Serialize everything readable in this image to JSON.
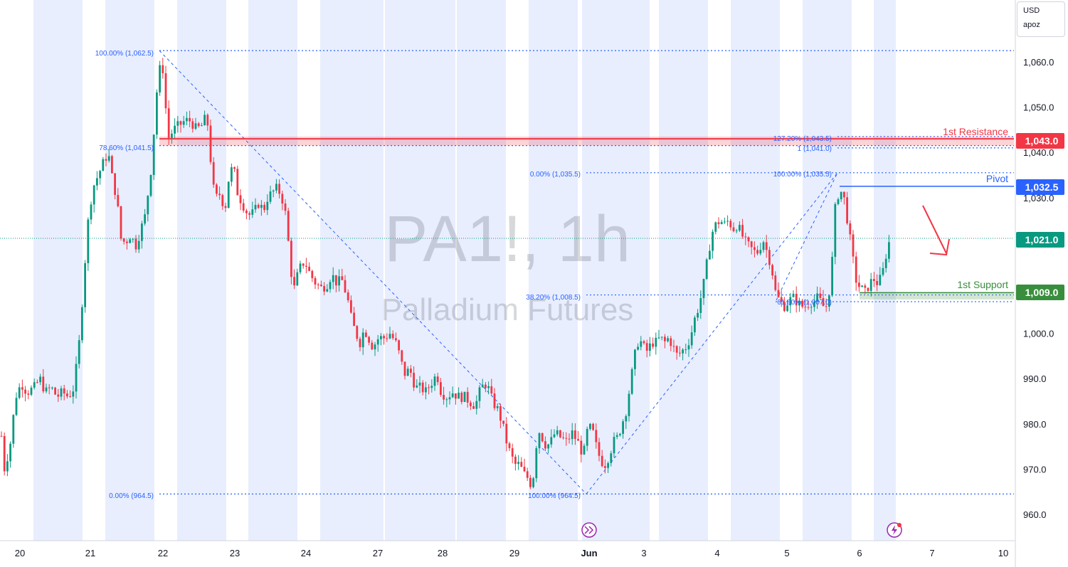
{
  "symbol": {
    "ticker": "PA1!, 1h",
    "name": "Palladium Futures"
  },
  "currency_box": {
    "currency": "USD",
    "unit": "apoz"
  },
  "colors": {
    "up": "#089981",
    "down": "#f23645",
    "band": "#e8eefe",
    "fib": "#2962ff",
    "resistance": "#f23645",
    "pivot": "#2962ff",
    "support": "#388e3c"
  },
  "icons": [
    "fast-forward-icon",
    "lightning-icon"
  ],
  "chart_data": {
    "type": "candlestick",
    "timeframe": "1h",
    "x_axis_labels": [
      "20",
      "21",
      "22",
      "23",
      "24",
      "27",
      "28",
      "29",
      "Jun",
      "3",
      "4",
      "5",
      "6",
      "7",
      "10"
    ],
    "y_axis_ticks": [
      "960.0",
      "970.0",
      "980.0",
      "990.0",
      "1,000.0",
      "1,010.0",
      "1,020.0",
      "1,030.0",
      "1,040.0",
      "1,050.0",
      "1,060.0"
    ],
    "ylim": [
      955,
      1068
    ],
    "last_price": {
      "value": "1,021.0"
    },
    "levels": [
      {
        "name": "1st Resistance",
        "value": "1,043.0"
      },
      {
        "name": "Pivot",
        "value": "1,032.5"
      },
      {
        "name": "1st Support",
        "value": "1,009.0"
      }
    ],
    "fib_left": [
      "100.00% (1,062.5)",
      "78.60% (1,041.5)",
      "0.00% (964.5)"
    ],
    "fib_right": [
      "0.00% (1,035.5)",
      "38.20% (1,008.5)"
    ],
    "fib_ext": [
      "127.20% (1,043.5)",
      "1 (1,041.0)",
      "100.00% (1,035.5)",
      "100.00% (964.5)",
      "61.80% (1,007.0)"
    ],
    "annotation": "projected move down from 1,021.0",
    "price_path": [
      [
        0,
        981
      ],
      [
        6,
        970
      ],
      [
        14,
        975
      ],
      [
        22,
        986
      ],
      [
        30,
        989
      ],
      [
        38,
        987
      ],
      [
        48,
        988
      ],
      [
        56,
        990
      ],
      [
        64,
        987
      ],
      [
        72,
        988
      ],
      [
        80,
        986
      ],
      [
        88,
        987
      ],
      [
        96,
        986
      ],
      [
        104,
        988
      ],
      [
        112,
        999
      ],
      [
        118,
        1013
      ],
      [
        124,
        1025
      ],
      [
        130,
        1032
      ],
      [
        138,
        1035
      ],
      [
        146,
        1038
      ],
      [
        152,
        1040
      ],
      [
        158,
        1034
      ],
      [
        164,
        1030
      ],
      [
        170,
        1021
      ],
      [
        176,
        1020
      ],
      [
        184,
        1022
      ],
      [
        190,
        1019
      ],
      [
        196,
        1022
      ],
      [
        204,
        1026
      ],
      [
        212,
        1036
      ],
      [
        218,
        1048
      ],
      [
        222,
        1057
      ],
      [
        228,
        1060
      ],
      [
        232,
        1052
      ],
      [
        236,
        1043
      ],
      [
        244,
        1045
      ],
      [
        252,
        1046
      ],
      [
        260,
        1047
      ],
      [
        268,
        1047
      ],
      [
        276,
        1045
      ],
      [
        284,
        1046
      ],
      [
        290,
        1048
      ],
      [
        294,
        1044
      ],
      [
        298,
        1033
      ],
      [
        304,
        1030
      ],
      [
        310,
        1031
      ],
      [
        316,
        1027
      ],
      [
        322,
        1035
      ],
      [
        328,
        1037
      ],
      [
        334,
        1031
      ],
      [
        340,
        1029
      ],
      [
        346,
        1027
      ],
      [
        352,
        1026
      ],
      [
        358,
        1027
      ],
      [
        364,
        1029
      ],
      [
        370,
        1027
      ],
      [
        376,
        1030
      ],
      [
        382,
        1031
      ],
      [
        388,
        1032
      ],
      [
        394,
        1031
      ],
      [
        400,
        1028
      ],
      [
        406,
        1019
      ],
      [
        412,
        1009
      ],
      [
        420,
        1014
      ],
      [
        428,
        1016
      ],
      [
        436,
        1013
      ],
      [
        444,
        1011
      ],
      [
        452,
        1010
      ],
      [
        460,
        1011
      ],
      [
        466,
        1013
      ],
      [
        474,
        1011
      ],
      [
        480,
        1012
      ],
      [
        488,
        1008
      ],
      [
        494,
        1003
      ],
      [
        500,
        1000
      ],
      [
        506,
        998
      ],
      [
        512,
        1001
      ],
      [
        518,
        999
      ],
      [
        524,
        997
      ],
      [
        532,
        999
      ],
      [
        540,
        999
      ],
      [
        548,
        1000
      ],
      [
        556,
        998
      ],
      [
        562,
        995
      ],
      [
        568,
        991
      ],
      [
        576,
        992
      ],
      [
        584,
        988
      ],
      [
        592,
        988
      ],
      [
        598,
        987
      ],
      [
        606,
        989
      ],
      [
        614,
        991
      ],
      [
        620,
        987
      ],
      [
        628,
        986
      ],
      [
        636,
        987
      ],
      [
        644,
        986
      ],
      [
        652,
        986
      ],
      [
        660,
        985
      ],
      [
        668,
        984
      ],
      [
        676,
        988
      ],
      [
        684,
        989
      ],
      [
        692,
        985
      ],
      [
        700,
        983
      ],
      [
        706,
        980
      ],
      [
        712,
        976
      ],
      [
        718,
        973
      ],
      [
        724,
        971
      ],
      [
        730,
        971
      ],
      [
        736,
        969
      ],
      [
        742,
        968
      ],
      [
        748,
        966
      ],
      [
        756,
        979
      ],
      [
        762,
        977
      ],
      [
        768,
        975
      ],
      [
        774,
        976
      ],
      [
        780,
        978
      ],
      [
        788,
        977
      ],
      [
        796,
        976
      ],
      [
        804,
        978
      ],
      [
        812,
        976
      ],
      [
        820,
        973
      ],
      [
        826,
        979
      ],
      [
        832,
        979
      ],
      [
        838,
        975
      ],
      [
        844,
        972
      ],
      [
        850,
        971
      ],
      [
        856,
        973
      ],
      [
        862,
        976
      ],
      [
        868,
        977
      ],
      [
        874,
        980
      ],
      [
        880,
        983
      ],
      [
        886,
        989
      ],
      [
        892,
        995
      ],
      [
        898,
        999
      ],
      [
        904,
        997
      ],
      [
        910,
        996
      ],
      [
        916,
        998
      ],
      [
        922,
        998
      ],
      [
        928,
        999
      ],
      [
        934,
        998
      ],
      [
        940,
        999
      ],
      [
        946,
        997
      ],
      [
        952,
        995
      ],
      [
        958,
        996
      ],
      [
        964,
        997
      ],
      [
        970,
        999
      ],
      [
        976,
        1003
      ],
      [
        982,
        1006
      ],
      [
        988,
        1010
      ],
      [
        994,
        1016
      ],
      [
        1000,
        1022
      ],
      [
        1006,
        1024
      ],
      [
        1012,
        1025
      ],
      [
        1018,
        1024
      ],
      [
        1024,
        1025
      ],
      [
        1030,
        1023
      ],
      [
        1036,
        1024
      ],
      [
        1042,
        1022
      ],
      [
        1048,
        1020
      ],
      [
        1054,
        1019
      ],
      [
        1060,
        1018
      ],
      [
        1066,
        1018
      ],
      [
        1072,
        1021
      ],
      [
        1078,
        1018
      ],
      [
        1084,
        1015
      ],
      [
        1090,
        1009
      ],
      [
        1096,
        1007
      ],
      [
        1102,
        1006
      ],
      [
        1108,
        1007
      ],
      [
        1114,
        1008
      ],
      [
        1120,
        1007
      ],
      [
        1126,
        1006
      ],
      [
        1132,
        1006
      ],
      [
        1138,
        1007
      ],
      [
        1144,
        1007
      ],
      [
        1150,
        1008
      ],
      [
        1156,
        1006
      ],
      [
        1162,
        1006
      ],
      [
        1168,
        1012
      ],
      [
        1174,
        1028
      ],
      [
        1180,
        1032
      ],
      [
        1186,
        1030
      ],
      [
        1192,
        1024
      ],
      [
        1198,
        1017
      ],
      [
        1204,
        1011
      ],
      [
        1210,
        1010
      ],
      [
        1216,
        1009
      ],
      [
        1222,
        1011
      ],
      [
        1228,
        1012
      ],
      [
        1234,
        1011
      ],
      [
        1240,
        1013
      ],
      [
        1246,
        1018
      ],
      [
        1251,
        1021
      ]
    ]
  }
}
